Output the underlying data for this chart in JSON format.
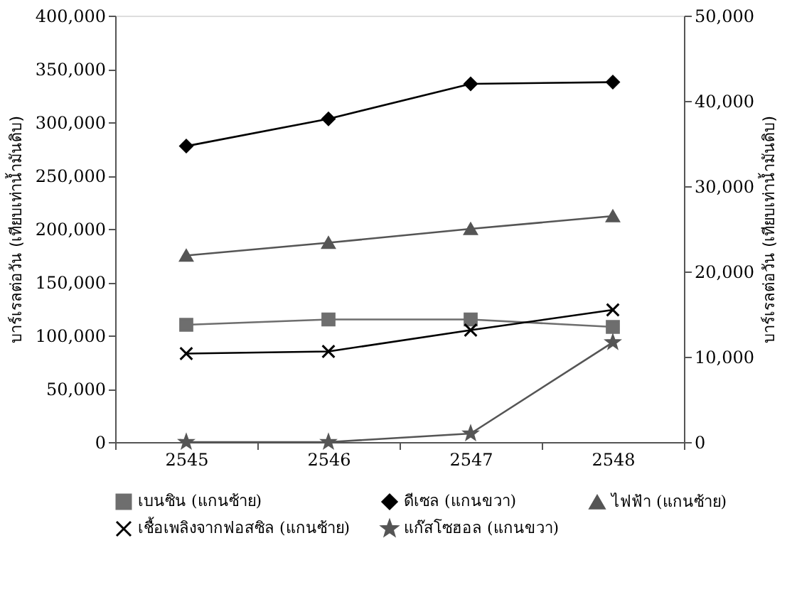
{
  "chart_data": {
    "type": "line",
    "categories": [
      "2545",
      "2546",
      "2547",
      "2548"
    ],
    "ylabel": "บาร์เรลต่อวัน (เทียบเท่าน้ำมันดิบ)",
    "y2label": "บาร์เรลต่อวัน (เทียบเท่าน้ำมันดิบ)",
    "ylim": [
      0,
      400000
    ],
    "yticks": [
      0,
      {
        "value": 50000,
        "label": "50,000"
      },
      {
        "value": 100000,
        "label": "100,000"
      },
      {
        "value": 150000,
        "label": "150,000"
      },
      {
        "value": 200000,
        "label": "200,000"
      },
      {
        "value": 250000,
        "label": "250,000"
      },
      {
        "value": 300000,
        "label": "300,000"
      },
      {
        "value": 350000,
        "label": "350,000"
      },
      {
        "value": 400000,
        "label": "400,000"
      }
    ],
    "y2lim": [
      0,
      50000
    ],
    "y2ticks": [
      0,
      {
        "value": 10000,
        "label": "10,000"
      },
      {
        "value": 20000,
        "label": "20,000"
      },
      {
        "value": 30000,
        "label": "30,000"
      },
      {
        "value": 40000,
        "label": "40,000"
      },
      {
        "value": 50000,
        "label": "50,000"
      }
    ],
    "grid": false,
    "legend": "bottom",
    "series": [
      {
        "name": "เบนซิน (แกนซ้าย)",
        "color": "#6e6e6e",
        "marker": "square",
        "values": [
          110000,
          115000,
          115000,
          108000
        ]
      },
      {
        "name": "ดีเซล (แกนขวา)",
        "color": "#000000",
        "marker": "diamond",
        "axis": "y2",
        "values": [
          34700,
          37900,
          42000,
          42200
        ]
      },
      {
        "name": "ไฟฟ้า (แกนซ้าย)",
        "color": "#555555",
        "marker": "triangle",
        "values": [
          175000,
          187000,
          200000,
          212000
        ]
      },
      {
        "name": "เชื้อเพลิงจากฟอสซิล (แกนซ้าย)",
        "color": "#000000",
        "marker": "cross",
        "values": [
          83000,
          85000,
          105000,
          124000
        ]
      },
      {
        "name": "แก๊สโซฮอล (แกนขวา)",
        "color": "#555555",
        "marker": "star",
        "axis": "y2",
        "values": [
          0,
          0,
          1000,
          11700
        ]
      }
    ]
  }
}
